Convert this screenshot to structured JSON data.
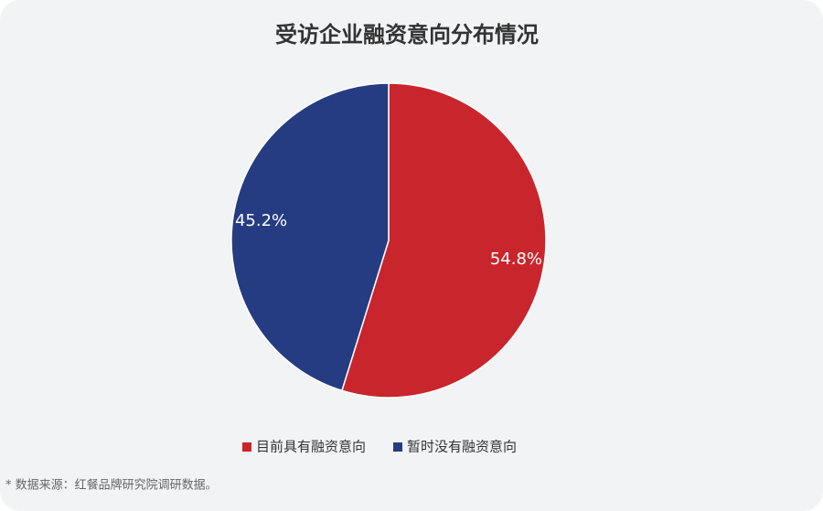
{
  "chart_data": {
    "type": "pie",
    "title": "受访企业融资意向分布情况",
    "categories": [
      "目前具有融资意向",
      "暂时没有融资意向"
    ],
    "values": [
      54.8,
      45.2
    ],
    "value_labels": [
      "54.8%",
      "45.2%"
    ],
    "colors": [
      "#c9252c",
      "#253c83"
    ],
    "legend": "bottom",
    "source": "* 数据来源：红餐品牌研究院调研数据。"
  }
}
